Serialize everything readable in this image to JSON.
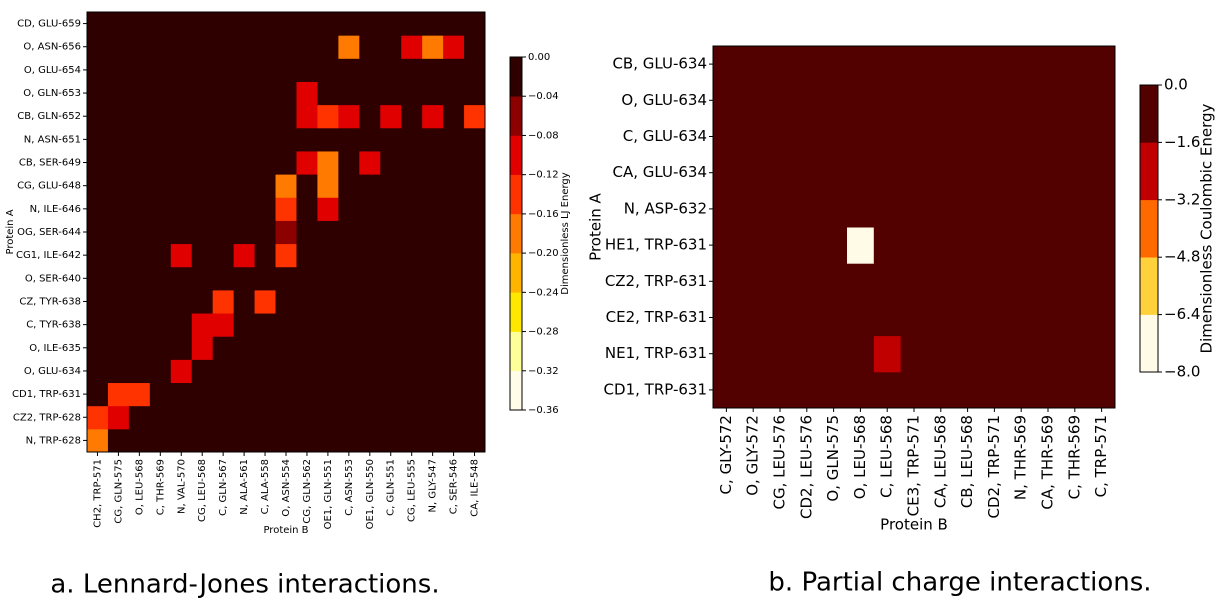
{
  "chart_data": [
    {
      "type": "heatmap",
      "caption": "a. Lennard-Jones interactions.",
      "x_label": "Protein B",
      "y_label": "Protein A",
      "colorbar_label": "Dimensionless LJ Energy",
      "x_categories": [
        "CH2, TRP-571",
        "CG, GLN-575",
        "O, LEU-568",
        "C, THR-569",
        "N, VAL-570",
        "CG, LEU-568",
        "C, GLN-567",
        "N, ALA-561",
        "C, ALA-558",
        "O, ASN-554",
        "CG, GLN-562",
        "OE1, GLN-551",
        "C, ASN-553",
        "OE1, GLN-550",
        "C, GLN-551",
        "CG, LEU-555",
        "N, GLY-547",
        "C, SER-546",
        "CA, ILE-548"
      ],
      "y_categories": [
        "N, TRP-628",
        "CZ2, TRP-628",
        "CD1, TRP-631",
        "O, GLU-634",
        "O, ILE-635",
        "C, TYR-638",
        "CZ, TYR-638",
        "O, SER-640",
        "CG1, ILE-642",
        "OG, SER-644",
        "N, ILE-646",
        "CG, GLU-648",
        "CB, SER-649",
        "N, ASN-651",
        "CB, GLN-652",
        "O, GLN-653",
        "O, GLU-654",
        "O, ASN-656",
        "CD, GLU-659"
      ],
      "values": [
        [
          -0.2,
          0,
          0,
          0,
          0,
          0,
          0,
          0,
          0,
          0,
          0,
          0,
          0,
          0,
          0,
          0,
          0,
          0,
          0
        ],
        [
          -0.16,
          -0.12,
          0,
          0,
          0,
          0,
          0,
          0,
          0,
          0,
          0,
          0,
          0,
          0,
          0,
          0,
          0,
          0,
          0
        ],
        [
          0,
          -0.14,
          -0.16,
          0,
          0,
          0,
          0,
          0,
          0,
          0,
          0,
          0,
          0,
          0,
          0,
          0,
          0,
          0,
          0
        ],
        [
          0,
          0,
          0,
          0,
          -0.12,
          0,
          0,
          0,
          0,
          0,
          0,
          0,
          0,
          0,
          0,
          0,
          0,
          0,
          0
        ],
        [
          0,
          0,
          0,
          0,
          0,
          -0.1,
          0,
          0,
          0,
          0,
          0,
          0,
          0,
          0,
          0,
          0,
          0,
          0,
          0
        ],
        [
          0,
          0,
          0,
          0,
          0,
          -0.08,
          -0.12,
          0,
          0,
          0,
          0,
          0,
          0,
          0,
          0,
          0,
          0,
          0,
          0
        ],
        [
          0,
          0,
          0,
          0,
          0,
          0,
          -0.14,
          0,
          -0.16,
          0,
          0,
          0,
          0,
          0,
          0,
          0,
          0,
          0,
          0
        ],
        [
          0,
          0,
          0,
          0,
          0,
          0,
          0,
          0,
          0,
          0,
          0,
          0,
          0,
          0,
          0,
          0,
          0,
          0,
          0
        ],
        [
          0,
          0,
          0,
          0,
          -0.08,
          0,
          0,
          -0.1,
          0,
          -0.14,
          0,
          0,
          0,
          0,
          0,
          0,
          0,
          0,
          0
        ],
        [
          0,
          0,
          0,
          0,
          0,
          0,
          0,
          0,
          0,
          -0.06,
          0,
          0,
          0,
          0,
          0,
          0,
          0,
          0,
          0
        ],
        [
          0,
          0,
          0,
          0,
          0,
          0,
          0,
          0,
          0,
          -0.14,
          0,
          -0.1,
          0,
          0,
          0,
          0,
          0,
          0,
          0
        ],
        [
          0,
          0,
          0,
          0,
          0,
          0,
          0,
          0,
          0,
          -0.2,
          0,
          -0.18,
          0,
          0,
          0,
          0,
          0,
          0,
          0
        ],
        [
          0,
          0,
          0,
          0,
          0,
          0,
          0,
          0,
          0,
          0,
          -0.08,
          -0.2,
          0,
          -0.08,
          0,
          0,
          0,
          0,
          0
        ],
        [
          0,
          0,
          0,
          0,
          0,
          0,
          0,
          0,
          0,
          0,
          0,
          0,
          0,
          0,
          0,
          0,
          0,
          0,
          0
        ],
        [
          0,
          0,
          0,
          0,
          0,
          0,
          0,
          0,
          0,
          0,
          -0.12,
          -0.16,
          -0.1,
          0,
          -0.08,
          0,
          -0.12,
          0,
          -0.14
        ],
        [
          0,
          0,
          0,
          0,
          0,
          0,
          0,
          0,
          0,
          0,
          -0.1,
          0,
          0,
          0,
          0,
          0,
          0,
          0,
          0
        ],
        [
          0,
          0,
          0,
          0,
          0,
          0,
          0,
          0,
          0,
          0,
          0,
          0,
          0,
          0,
          0,
          0,
          0,
          0,
          0
        ],
        [
          0,
          0,
          0,
          0,
          0,
          0,
          0,
          0,
          0,
          0,
          0,
          0,
          -0.2,
          0,
          0,
          -0.08,
          -0.2,
          -0.08,
          0
        ],
        [
          0,
          0,
          0,
          0,
          0,
          0,
          0,
          0,
          0,
          0,
          0,
          0,
          0,
          0,
          0,
          0,
          0,
          0,
          0
        ]
      ],
      "clim": [
        -0.36,
        0
      ],
      "cticks": [
        {
          "value": 0,
          "label": "0.00"
        },
        {
          "value": -0.04,
          "label": "−0.04"
        },
        {
          "value": -0.08,
          "label": "−0.08"
        },
        {
          "value": -0.12,
          "label": "−0.12"
        },
        {
          "value": -0.16,
          "label": "−0.16"
        },
        {
          "value": -0.2,
          "label": "−0.20"
        },
        {
          "value": -0.24,
          "label": "−0.24"
        },
        {
          "value": -0.28,
          "label": "−0.28"
        },
        {
          "value": -0.32,
          "label": "−0.32"
        },
        {
          "value": -0.36,
          "label": "−0.36"
        }
      ],
      "colors": [
        "#fffde8",
        "#ffff99",
        "#ffe800",
        "#ffb400",
        "#ff7a00",
        "#ff3300",
        "#e00000",
        "#8c0000",
        "#2e0000"
      ]
    },
    {
      "type": "heatmap",
      "caption": "b. Partial charge interactions.",
      "x_label": "Protein B",
      "y_label": "Protein A",
      "colorbar_label": "Dimensionless Coulombic Energy",
      "x_categories": [
        "C, GLY-572",
        "O, GLY-572",
        "CG, LEU-576",
        "CD2, LEU-576",
        "O, GLN-575",
        "O, LEU-568",
        "C, LEU-568",
        "CE3, TRP-571",
        "CA, LEU-568",
        "CB, LEU-568",
        "CD2, TRP-571",
        "N, THR-569",
        "CA, THR-569",
        "C, THR-569",
        "C, TRP-571"
      ],
      "y_categories": [
        "CD1, TRP-631",
        "NE1, TRP-631",
        "CE2, TRP-631",
        "CZ2, TRP-631",
        "HE1, TRP-631",
        "N, ASP-632",
        "CA, GLU-634",
        "C, GLU-634",
        "O, GLU-634",
        "CB, GLU-634"
      ],
      "values": [
        [
          0,
          0,
          0,
          0,
          0,
          0,
          0,
          0,
          0,
          0,
          0,
          0,
          0,
          0,
          0
        ],
        [
          0,
          0,
          0,
          0,
          0,
          0,
          -2.0,
          0,
          0,
          0,
          0,
          0,
          0,
          0,
          0
        ],
        [
          0,
          0,
          0,
          0,
          0,
          0,
          0,
          0,
          0,
          0,
          0,
          0,
          0,
          0,
          0
        ],
        [
          0,
          0,
          0,
          0,
          0,
          0,
          0,
          0,
          0,
          0,
          0,
          0,
          0,
          0,
          0
        ],
        [
          0,
          0,
          0,
          0,
          0,
          -8.0,
          0,
          0,
          0,
          0,
          0,
          0,
          0,
          0,
          0
        ],
        [
          0,
          0,
          0,
          0,
          0,
          0,
          0,
          0,
          0,
          0,
          0,
          0,
          0,
          0,
          0
        ],
        [
          0,
          0,
          0,
          0,
          0,
          0,
          0,
          0,
          0,
          0,
          0,
          0,
          0,
          0,
          0
        ],
        [
          0,
          0,
          0,
          0,
          0,
          0,
          0,
          0,
          0,
          0,
          0,
          0,
          0,
          0,
          0
        ],
        [
          0,
          0,
          0,
          0,
          0,
          0,
          0,
          0,
          0,
          0,
          0,
          0,
          0,
          0,
          0
        ],
        [
          0,
          0,
          0,
          0,
          0,
          0,
          0,
          0,
          0,
          0,
          0,
          0,
          0,
          0,
          0
        ]
      ],
      "clim": [
        -8.0,
        0
      ],
      "cticks": [
        {
          "value": 0,
          "label": "0.0"
        },
        {
          "value": -1.6,
          "label": "−1.6"
        },
        {
          "value": -3.2,
          "label": "−3.2"
        },
        {
          "value": -4.8,
          "label": "−4.8"
        },
        {
          "value": -6.4,
          "label": "−6.4"
        },
        {
          "value": -8.0,
          "label": "−8.0"
        }
      ],
      "colors": [
        "#fffbe6",
        "#ffd23c",
        "#ff6a00",
        "#c00000",
        "#520000"
      ]
    }
  ]
}
